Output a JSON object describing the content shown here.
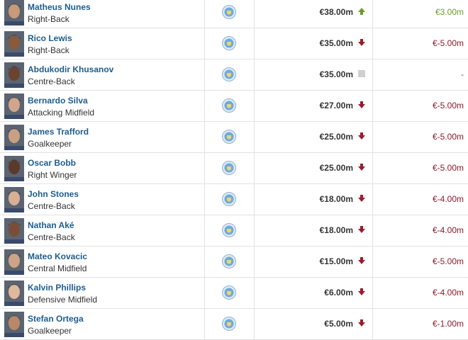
{
  "table": {
    "rows": [
      {
        "name": "Matheus Nunes",
        "position": "Right-Back",
        "value": "€38.00m",
        "change": "€3.00m"
      },
      {
        "name": "Rico Lewis",
        "position": "Right-Back",
        "value": "€35.00m",
        "change": "€-5.00m"
      },
      {
        "name": "Abdukodir Khusanov",
        "position": "Centre-Back",
        "value": "€35.00m",
        "change": "-"
      },
      {
        "name": "Bernardo Silva",
        "position": "Attacking Midfield",
        "value": "€27.00m",
        "change": "€-5.00m"
      },
      {
        "name": "James Trafford",
        "position": "Goalkeeper",
        "value": "€25.00m",
        "change": "€-5.00m"
      },
      {
        "name": "Oscar Bobb",
        "position": "Right Winger",
        "value": "€25.00m",
        "change": "€-5.00m"
      },
      {
        "name": "John Stones",
        "position": "Centre-Back",
        "value": "€18.00m",
        "change": "€-4.00m"
      },
      {
        "name": "Nathan Aké",
        "position": "Centre-Back",
        "value": "€18.00m",
        "change": "€-4.00m"
      },
      {
        "name": "Mateo Kovacic",
        "position": "Central Midfield",
        "value": "€15.00m",
        "change": "€-5.00m"
      },
      {
        "name": "Kalvin Phillips",
        "position": "Defensive Midfield",
        "value": "€6.00m",
        "change": "€-4.00m"
      },
      {
        "name": "Stefan Ortega",
        "position": "Goalkeeper",
        "value": "€5.00m",
        "change": "€-1.00m"
      }
    ]
  }
}
